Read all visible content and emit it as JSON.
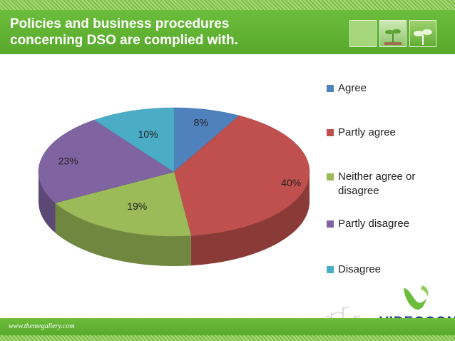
{
  "header": {
    "title": "Policies and business procedures\nconcerning DSO are complied with."
  },
  "footer": {
    "website": "www.themegallery.com",
    "brand": "VIDEOCON"
  },
  "chart_data": {
    "type": "pie",
    "title": "",
    "categories": [
      "Agree",
      "Partly agree",
      "Neither agree or disagree",
      "Partly disagree",
      "Disagree"
    ],
    "values": [
      8,
      40,
      19,
      23,
      10
    ],
    "data_labels": [
      "8%",
      "40%",
      "19%",
      "23%",
      "10%"
    ],
    "colors": [
      "#4f81bd",
      "#c0504d",
      "#9bbb59",
      "#8064a2",
      "#4bacc6"
    ],
    "legend_placement": "right",
    "three_d": true
  }
}
